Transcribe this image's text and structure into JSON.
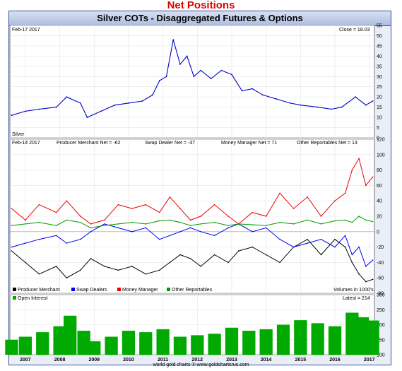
{
  "page_title": "Net Positions",
  "chart_title": "Silver COTs - Disaggregated Futures & Options",
  "footer_credit": "world gold charts ® www.goldchartsrus.com",
  "colors": {
    "price_line": "#0000cc",
    "producer_merchant": "#000000",
    "swap_dealers": "#0000ee",
    "money_manager": "#ee0000",
    "other_reportables": "#009900",
    "open_interest": "#00aa00",
    "frame": "#3a4f9c",
    "panel_bg": "#ffffff"
  },
  "chart_data": [
    {
      "type": "line",
      "panel": "price",
      "date_label": "Feb-17 2017",
      "series_label": "Silver",
      "close_label": "Close = 18.03",
      "ylim": [
        0,
        55
      ],
      "yticks": [
        0,
        5,
        10,
        15,
        20,
        25,
        30,
        35,
        40,
        45,
        50,
        55
      ],
      "x": [
        2006.6,
        2007.0,
        2007.4,
        2007.9,
        2008.2,
        2008.6,
        2008.8,
        2009.2,
        2009.6,
        2010.0,
        2010.4,
        2010.7,
        2010.9,
        2011.1,
        2011.3,
        2011.5,
        2011.7,
        2011.9,
        2012.1,
        2012.4,
        2012.7,
        2013.0,
        2013.3,
        2013.6,
        2013.9,
        2014.3,
        2014.7,
        2015.0,
        2015.5,
        2015.9,
        2016.2,
        2016.6,
        2016.9,
        2017.1
      ],
      "y": [
        11,
        13,
        14,
        15,
        20,
        17,
        10,
        13,
        16,
        17,
        18,
        21,
        28,
        30,
        48,
        36,
        40,
        30,
        33,
        29,
        33,
        31,
        23,
        24,
        21,
        19,
        17,
        16,
        15,
        14,
        15,
        20,
        16,
        18
      ]
    },
    {
      "type": "line",
      "panel": "net_positions",
      "date_label": "Feb-14 2017",
      "header_labels": [
        "Producer Merchant Net = -62",
        "Swap Dealer Net = -37",
        "Money Manager Net = 71",
        "Other Reportables Net = 13"
      ],
      "legend": [
        "Producer Merchant",
        "Swap Dealers",
        "Money Manager",
        "Other Reportables"
      ],
      "volume_note": "Volumes in 1000's",
      "ylim": [
        -80,
        120
      ],
      "yticks": [
        -80,
        -60,
        -40,
        -20,
        0,
        20,
        40,
        60,
        80,
        100,
        120
      ],
      "x": [
        2006.6,
        2007.0,
        2007.4,
        2007.9,
        2008.2,
        2008.6,
        2008.9,
        2009.3,
        2009.7,
        2010.1,
        2010.5,
        2010.9,
        2011.2,
        2011.5,
        2011.8,
        2012.1,
        2012.5,
        2012.9,
        2013.2,
        2013.6,
        2014.0,
        2014.4,
        2014.8,
        2015.2,
        2015.6,
        2016.0,
        2016.3,
        2016.5,
        2016.7,
        2016.9,
        2017.1
      ],
      "series": [
        {
          "name": "Producer Merchant",
          "values": [
            -25,
            -40,
            -55,
            -45,
            -60,
            -50,
            -35,
            -45,
            -50,
            -45,
            -55,
            -50,
            -40,
            -30,
            -35,
            -45,
            -30,
            -40,
            -25,
            -20,
            -30,
            -40,
            -20,
            -10,
            -30,
            -10,
            -20,
            -40,
            -55,
            -65,
            -62
          ]
        },
        {
          "name": "Swap Dealers",
          "values": [
            -20,
            -15,
            -10,
            -5,
            -15,
            -10,
            0,
            10,
            5,
            0,
            5,
            -10,
            -5,
            0,
            5,
            0,
            -5,
            5,
            10,
            0,
            5,
            -10,
            -20,
            -15,
            -10,
            -20,
            -5,
            -30,
            -20,
            -45,
            -37
          ]
        },
        {
          "name": "Money Manager",
          "values": [
            30,
            15,
            35,
            25,
            40,
            20,
            10,
            15,
            35,
            30,
            35,
            25,
            45,
            30,
            15,
            20,
            35,
            20,
            10,
            25,
            20,
            50,
            30,
            45,
            20,
            40,
            50,
            80,
            95,
            60,
            71
          ]
        },
        {
          "name": "Other Reportables",
          "values": [
            8,
            10,
            12,
            8,
            15,
            12,
            5,
            8,
            10,
            12,
            10,
            14,
            15,
            12,
            8,
            10,
            12,
            8,
            10,
            9,
            8,
            12,
            10,
            15,
            10,
            14,
            15,
            12,
            20,
            15,
            13
          ]
        }
      ]
    },
    {
      "type": "bar",
      "panel": "open_interest",
      "legend": [
        "Open Interest"
      ],
      "latest_label": "Latest = 214",
      "ylim": [
        100,
        300
      ],
      "yticks": [
        100,
        150,
        200,
        250,
        300
      ],
      "x": [
        2006.6,
        2007.0,
        2007.5,
        2008.0,
        2008.3,
        2008.7,
        2009.0,
        2009.5,
        2010.0,
        2010.5,
        2011.0,
        2011.5,
        2012.0,
        2012.5,
        2013.0,
        2013.5,
        2014.0,
        2014.5,
        2015.0,
        2015.5,
        2016.0,
        2016.5,
        2016.8,
        2017.1
      ],
      "values": [
        150,
        160,
        175,
        195,
        230,
        180,
        145,
        160,
        180,
        175,
        185,
        160,
        165,
        170,
        190,
        180,
        185,
        200,
        215,
        205,
        195,
        240,
        225,
        214
      ],
      "xtick_labels": [
        "2007",
        "2008",
        "2009",
        "2010",
        "2011",
        "2012",
        "2013",
        "2014",
        "2015",
        "2016",
        "2017"
      ],
      "xtick_values": [
        2007,
        2008,
        2009,
        2010,
        2011,
        2012,
        2013,
        2014,
        2015,
        2016,
        2017
      ],
      "xlim": [
        2006.55,
        2017.15
      ]
    }
  ]
}
